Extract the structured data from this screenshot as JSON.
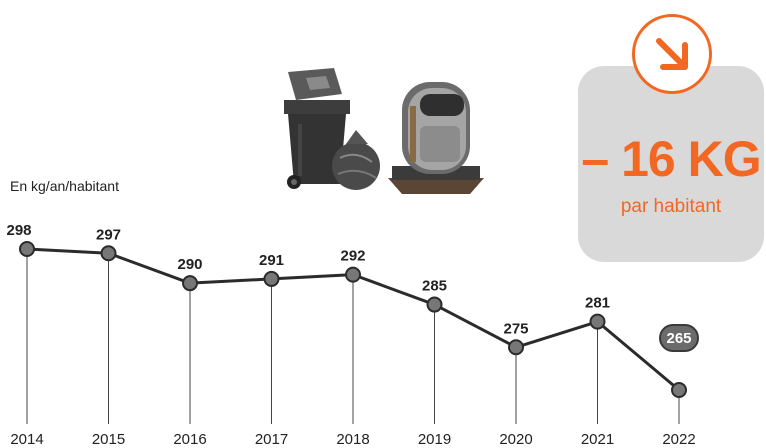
{
  "unit_label": "En kg/an/habitant",
  "kpi": {
    "value": "– 16 KG",
    "sub": "par habitant",
    "trend_icon": "arrow-down-right-icon",
    "accent": "#f26722"
  },
  "colors": {
    "line": "#2b2b2b",
    "point": "#777777",
    "highlight_badge": "#6b6b6b"
  },
  "chart_data": {
    "type": "line",
    "categories": [
      "2014",
      "2015",
      "2016",
      "2017",
      "2018",
      "2019",
      "2020",
      "2021",
      "2022"
    ],
    "values": [
      298,
      297,
      290,
      291,
      292,
      285,
      275,
      281,
      265
    ],
    "data_labels": [
      "298",
      "297",
      "290",
      "291",
      "292",
      "285",
      "275",
      "281",
      "265"
    ],
    "highlight_index": 8,
    "grid": false,
    "legend": "none"
  }
}
